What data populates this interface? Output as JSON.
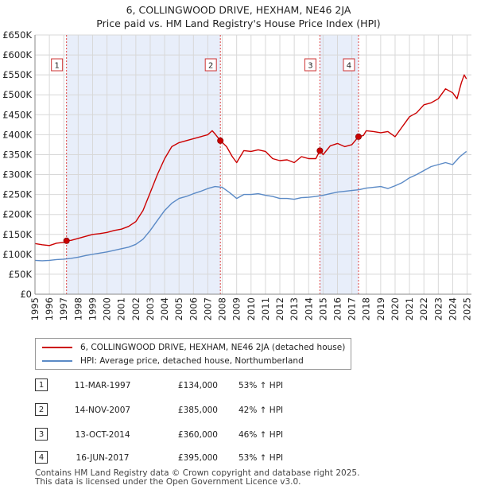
{
  "title_line1": "6, COLLINGWOOD DRIVE, HEXHAM, NE46 2JA",
  "title_line2": "Price paid vs. HM Land Registry's House Price Index (HPI)",
  "chart_data": {
    "type": "line",
    "title": "6, COLLINGWOOD DRIVE, HEXHAM, NE46 2JA — Price paid vs. HM Land Registry's House Price Index (HPI)",
    "xlabel": "",
    "ylabel": "",
    "xlim": [
      1995,
      2025.3
    ],
    "ylim": [
      0,
      650000
    ],
    "y_ticks": [
      0,
      50000,
      100000,
      150000,
      200000,
      250000,
      300000,
      350000,
      400000,
      450000,
      500000,
      550000,
      600000,
      650000
    ],
    "y_tick_labels": [
      "£0",
      "£50K",
      "£100K",
      "£150K",
      "£200K",
      "£250K",
      "£300K",
      "£350K",
      "£400K",
      "£450K",
      "£500K",
      "£550K",
      "£600K",
      "£650K"
    ],
    "x_ticks": [
      1995,
      1996,
      1997,
      1998,
      1999,
      2000,
      2001,
      2002,
      2003,
      2004,
      2005,
      2006,
      2007,
      2008,
      2009,
      2010,
      2011,
      2012,
      2013,
      2014,
      2015,
      2016,
      2017,
      2018,
      2019,
      2020,
      2021,
      2022,
      2023,
      2024,
      2025
    ],
    "shaded_ranges": [
      [
        1997.19,
        2007.87
      ],
      [
        2014.78,
        2017.46
      ]
    ],
    "series": [
      {
        "name": "6, COLLINGWOOD DRIVE, HEXHAM, NE46 2JA (detached house)",
        "color": "#cc0000",
        "x": [
          1995.0,
          1995.5,
          1996.0,
          1996.5,
          1997.0,
          1997.19,
          1997.5,
          1998.0,
          1998.5,
          1999.0,
          1999.5,
          2000.0,
          2000.5,
          2001.0,
          2001.5,
          2002.0,
          2002.5,
          2003.0,
          2003.5,
          2004.0,
          2004.5,
          2005.0,
          2005.5,
          2006.0,
          2006.5,
          2007.0,
          2007.3,
          2007.5,
          2007.87,
          2008.3,
          2008.7,
          2009.0,
          2009.5,
          2010.0,
          2010.5,
          2011.0,
          2011.5,
          2012.0,
          2012.5,
          2013.0,
          2013.5,
          2014.0,
          2014.5,
          2014.78,
          2015.0,
          2015.5,
          2016.0,
          2016.5,
          2017.0,
          2017.46,
          2017.8,
          2018.0,
          2018.5,
          2019.0,
          2019.5,
          2020.0,
          2020.5,
          2021.0,
          2021.5,
          2022.0,
          2022.5,
          2023.0,
          2023.5,
          2024.0,
          2024.3,
          2024.6,
          2024.8,
          2024.95
        ],
        "y": [
          127000,
          124000,
          122000,
          128000,
          130000,
          134000,
          135000,
          140000,
          145000,
          150000,
          152000,
          155000,
          160000,
          163000,
          170000,
          182000,
          210000,
          255000,
          300000,
          340000,
          370000,
          380000,
          385000,
          390000,
          395000,
          400000,
          410000,
          402000,
          385000,
          370000,
          345000,
          330000,
          360000,
          358000,
          362000,
          358000,
          340000,
          335000,
          337000,
          330000,
          345000,
          340000,
          340000,
          360000,
          350000,
          372000,
          378000,
          370000,
          375000,
          395000,
          398000,
          410000,
          408000,
          405000,
          408000,
          395000,
          420000,
          445000,
          455000,
          475000,
          480000,
          490000,
          515000,
          505000,
          490000,
          530000,
          550000,
          540000
        ]
      },
      {
        "name": "HPI: Average price, detached house, Northumberland",
        "color": "#5b8ac6",
        "x": [
          1995.0,
          1995.5,
          1996.0,
          1996.5,
          1997.0,
          1997.5,
          1998.0,
          1998.5,
          1999.0,
          1999.5,
          2000.0,
          2000.5,
          2001.0,
          2001.5,
          2002.0,
          2002.5,
          2003.0,
          2003.5,
          2004.0,
          2004.5,
          2005.0,
          2005.5,
          2006.0,
          2006.5,
          2007.0,
          2007.5,
          2008.0,
          2008.5,
          2009.0,
          2009.5,
          2010.0,
          2010.5,
          2011.0,
          2011.5,
          2012.0,
          2012.5,
          2013.0,
          2013.5,
          2014.0,
          2014.5,
          2015.0,
          2015.5,
          2016.0,
          2016.5,
          2017.0,
          2017.5,
          2018.0,
          2018.5,
          2019.0,
          2019.5,
          2020.0,
          2020.5,
          2021.0,
          2021.5,
          2022.0,
          2022.5,
          2023.0,
          2023.5,
          2024.0,
          2024.5,
          2024.95
        ],
        "y": [
          85000,
          84000,
          85000,
          87000,
          88000,
          90000,
          93000,
          97000,
          100000,
          103000,
          106000,
          110000,
          114000,
          118000,
          125000,
          138000,
          160000,
          185000,
          210000,
          228000,
          240000,
          245000,
          252000,
          258000,
          265000,
          270000,
          268000,
          255000,
          240000,
          250000,
          250000,
          252000,
          248000,
          245000,
          240000,
          240000,
          238000,
          242000,
          243000,
          245000,
          248000,
          252000,
          256000,
          258000,
          260000,
          262000,
          266000,
          268000,
          270000,
          265000,
          272000,
          280000,
          292000,
          300000,
          310000,
          320000,
          325000,
          330000,
          325000,
          345000,
          358000
        ]
      }
    ],
    "sale_markers": [
      {
        "label": "1",
        "x": 1997.19,
        "y": 134000
      },
      {
        "label": "2",
        "x": 2007.87,
        "y": 385000
      },
      {
        "label": "3",
        "x": 2014.78,
        "y": 360000
      },
      {
        "label": "4",
        "x": 2017.46,
        "y": 395000
      }
    ]
  },
  "legend": {
    "property_label": "6, COLLINGWOOD DRIVE, HEXHAM, NE46 2JA (detached house)",
    "hpi_label": "HPI: Average price, detached house, Northumberland",
    "property_color": "#cc0000",
    "hpi_color": "#5b8ac6"
  },
  "transactions": [
    {
      "num": "1",
      "date": "11-MAR-1997",
      "price": "£134,000",
      "hpi": "53% ↑ HPI"
    },
    {
      "num": "2",
      "date": "14-NOV-2007",
      "price": "£385,000",
      "hpi": "42% ↑ HPI"
    },
    {
      "num": "3",
      "date": "13-OCT-2014",
      "price": "£360,000",
      "hpi": "46% ↑ HPI"
    },
    {
      "num": "4",
      "date": "16-JUN-2017",
      "price": "£395,000",
      "hpi": "53% ↑ HPI"
    }
  ],
  "footer_line1": "Contains HM Land Registry data © Crown copyright and database right 2025.",
  "footer_line2": "This data is licensed under the Open Government Licence v3.0."
}
